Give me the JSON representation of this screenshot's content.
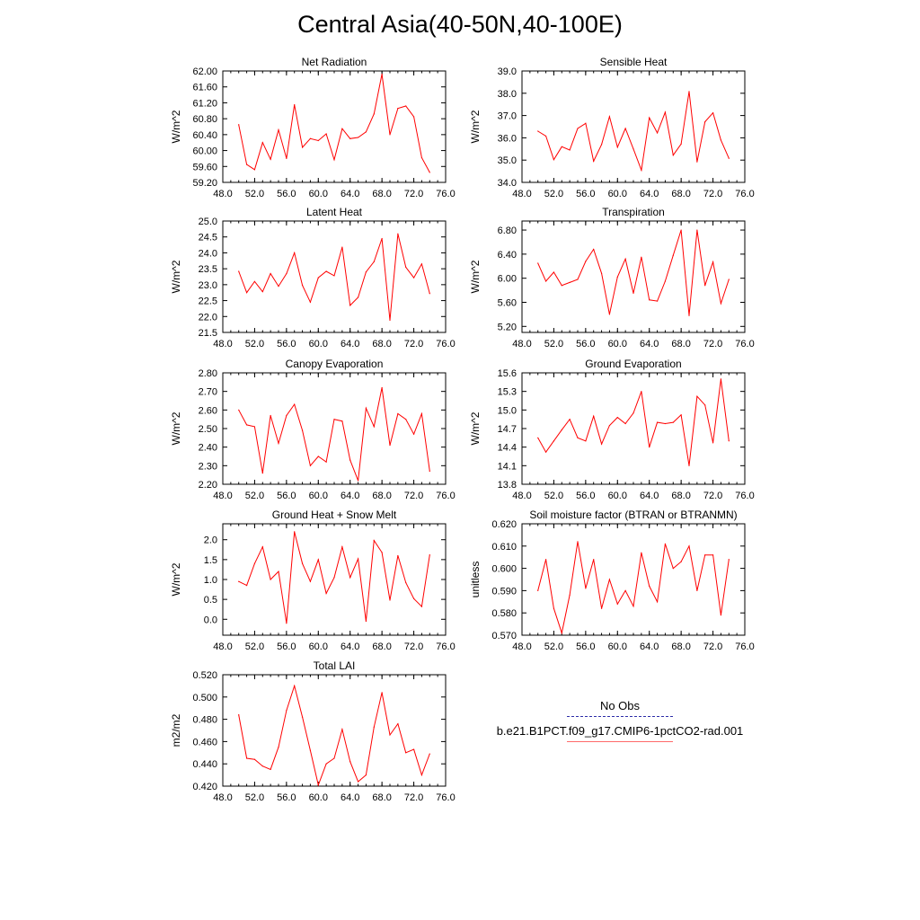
{
  "title": "Central Asia(40-50N,40-100E)",
  "colors": {
    "model": "#ff0000",
    "obs": "#2c2ca8",
    "axis": "#000000"
  },
  "legend": {
    "obs_label": "No Obs",
    "model_label": "b.e21.B1PCT.f09_g17.CMIP6-1pctCO2-rad.001"
  },
  "chart_data": [
    {
      "type": "line",
      "title": "Net Radiation",
      "xlabel": "",
      "ylabel": "W/m^2",
      "xlim": [
        48,
        76
      ],
      "ylim": [
        59.2,
        62.0
      ],
      "xticks": [
        "48.0",
        "52.0",
        "56.0",
        "60.0",
        "64.0",
        "68.0",
        "72.0",
        "76.0"
      ],
      "yticks": [
        "59.20",
        "59.60",
        "60.00",
        "60.40",
        "60.80",
        "61.20",
        "61.60",
        "62.00"
      ],
      "x": [
        50,
        51,
        52,
        53,
        54,
        55,
        56,
        57,
        58,
        59,
        60,
        61,
        62,
        63,
        64,
        65,
        66,
        67,
        68,
        69,
        70,
        71,
        72,
        73,
        74
      ],
      "series": [
        {
          "values": [
            60.65,
            59.65,
            59.52,
            60.2,
            59.78,
            60.52,
            59.8,
            61.15,
            60.08,
            60.3,
            60.25,
            60.42,
            59.77,
            60.55,
            60.3,
            60.33,
            60.47,
            60.92,
            61.92,
            60.4,
            61.06,
            61.12,
            60.85,
            59.82,
            59.45
          ]
        }
      ]
    },
    {
      "type": "line",
      "title": "Sensible Heat",
      "xlabel": "",
      "ylabel": "W/m^2",
      "xlim": [
        48,
        76
      ],
      "ylim": [
        34.0,
        39.0
      ],
      "xticks": [
        "48.0",
        "52.0",
        "56.0",
        "60.0",
        "64.0",
        "68.0",
        "72.0",
        "76.0"
      ],
      "yticks": [
        "34.0",
        "35.0",
        "36.0",
        "37.0",
        "38.0",
        "39.0"
      ],
      "x": [
        50,
        51,
        52,
        53,
        54,
        55,
        56,
        57,
        58,
        59,
        60,
        61,
        62,
        63,
        64,
        65,
        66,
        67,
        68,
        69,
        70,
        71,
        72,
        73,
        74
      ],
      "series": [
        {
          "values": [
            36.3,
            36.08,
            35.02,
            35.6,
            35.45,
            36.42,
            36.65,
            34.95,
            35.7,
            36.95,
            35.58,
            36.42,
            35.5,
            34.55,
            36.9,
            36.22,
            37.15,
            35.22,
            35.72,
            38.08,
            34.92,
            36.72,
            37.12,
            35.9,
            35.08
          ]
        }
      ]
    },
    {
      "type": "line",
      "title": "Latent Heat",
      "xlabel": "",
      "ylabel": "W/m^2",
      "xlim": [
        48,
        76
      ],
      "ylim": [
        21.5,
        25.0
      ],
      "xticks": [
        "48.0",
        "52.0",
        "56.0",
        "60.0",
        "64.0",
        "68.0",
        "72.0",
        "76.0"
      ],
      "yticks": [
        "21.5",
        "22.0",
        "22.5",
        "23.0",
        "23.5",
        "24.0",
        "24.5",
        "25.0"
      ],
      "x": [
        50,
        51,
        52,
        53,
        54,
        55,
        56,
        57,
        58,
        59,
        60,
        61,
        62,
        63,
        64,
        65,
        66,
        67,
        68,
        69,
        70,
        71,
        72,
        73,
        74
      ],
      "series": [
        {
          "values": [
            23.42,
            22.75,
            23.1,
            22.78,
            23.35,
            22.95,
            23.35,
            24.0,
            22.98,
            22.45,
            23.22,
            23.42,
            23.28,
            24.18,
            22.35,
            22.6,
            23.4,
            23.72,
            24.45,
            21.88,
            24.6,
            23.55,
            23.22,
            23.65,
            22.72
          ]
        }
      ]
    },
    {
      "type": "line",
      "title": "Transpiration",
      "xlabel": "",
      "ylabel": "W/m^2",
      "xlim": [
        48,
        76
      ],
      "ylim": [
        5.1,
        6.95
      ],
      "xticks": [
        "48.0",
        "52.0",
        "56.0",
        "60.0",
        "64.0",
        "68.0",
        "72.0",
        "76.0"
      ],
      "yticks": [
        "5.20",
        "5.60",
        "6.00",
        "6.40",
        "6.80"
      ],
      "x": [
        50,
        51,
        52,
        53,
        54,
        55,
        56,
        57,
        58,
        59,
        60,
        61,
        62,
        63,
        64,
        65,
        66,
        67,
        68,
        69,
        70,
        71,
        72,
        73,
        74
      ],
      "series": [
        {
          "values": [
            6.25,
            5.95,
            6.1,
            5.88,
            5.93,
            5.98,
            6.28,
            6.48,
            6.08,
            5.4,
            6.02,
            6.32,
            5.75,
            6.35,
            5.64,
            5.62,
            5.95,
            6.38,
            6.8,
            5.38,
            6.8,
            5.88,
            6.27,
            5.58,
            5.98
          ]
        }
      ]
    },
    {
      "type": "line",
      "title": "Canopy Evaporation",
      "xlabel": "",
      "ylabel": "W/m^2",
      "xlim": [
        48,
        76
      ],
      "ylim": [
        2.2,
        2.8
      ],
      "xticks": [
        "48.0",
        "52.0",
        "56.0",
        "60.0",
        "64.0",
        "68.0",
        "72.0",
        "76.0"
      ],
      "yticks": [
        "2.20",
        "2.30",
        "2.40",
        "2.50",
        "2.60",
        "2.70",
        "2.80"
      ],
      "x": [
        50,
        51,
        52,
        53,
        54,
        55,
        56,
        57,
        58,
        59,
        60,
        61,
        62,
        63,
        64,
        65,
        66,
        67,
        68,
        69,
        70,
        71,
        72,
        73,
        74
      ],
      "series": [
        {
          "values": [
            2.6,
            2.52,
            2.51,
            2.26,
            2.57,
            2.42,
            2.57,
            2.63,
            2.49,
            2.3,
            2.35,
            2.32,
            2.55,
            2.54,
            2.33,
            2.22,
            2.61,
            2.51,
            2.72,
            2.41,
            2.58,
            2.55,
            2.47,
            2.58,
            2.27
          ]
        }
      ]
    },
    {
      "type": "line",
      "title": "Ground Evaporation",
      "xlabel": "",
      "ylabel": "W/m^2",
      "xlim": [
        48,
        76
      ],
      "ylim": [
        13.8,
        15.6
      ],
      "xticks": [
        "48.0",
        "52.0",
        "56.0",
        "60.0",
        "64.0",
        "68.0",
        "72.0",
        "76.0"
      ],
      "yticks": [
        "13.8",
        "14.1",
        "14.4",
        "14.7",
        "15.0",
        "15.3",
        "15.6"
      ],
      "x": [
        50,
        51,
        52,
        53,
        54,
        55,
        56,
        57,
        58,
        59,
        60,
        61,
        62,
        63,
        64,
        65,
        66,
        67,
        68,
        69,
        70,
        71,
        72,
        73,
        74
      ],
      "series": [
        {
          "values": [
            14.55,
            14.32,
            14.5,
            14.68,
            14.85,
            14.55,
            14.5,
            14.9,
            14.45,
            14.75,
            14.88,
            14.78,
            14.95,
            15.3,
            14.4,
            14.8,
            14.78,
            14.8,
            14.92,
            14.1,
            15.22,
            15.08,
            14.47,
            15.5,
            14.5
          ]
        }
      ]
    },
    {
      "type": "line",
      "title": "Ground Heat + Snow Melt",
      "xlabel": "",
      "ylabel": "W/m^2",
      "xlim": [
        48,
        76
      ],
      "ylim": [
        -0.4,
        2.4
      ],
      "xticks": [
        "48.0",
        "52.0",
        "56.0",
        "60.0",
        "64.0",
        "68.0",
        "72.0",
        "76.0"
      ],
      "yticks": [
        "0.0",
        "0.5",
        "1.0",
        "1.5",
        "2.0"
      ],
      "x": [
        50,
        51,
        52,
        53,
        54,
        55,
        56,
        57,
        58,
        59,
        60,
        61,
        62,
        63,
        64,
        65,
        66,
        67,
        68,
        69,
        70,
        71,
        72,
        73,
        74
      ],
      "series": [
        {
          "values": [
            0.95,
            0.85,
            1.4,
            1.82,
            1.0,
            1.2,
            -0.1,
            2.2,
            1.4,
            0.95,
            1.5,
            0.65,
            1.05,
            1.82,
            1.05,
            1.52,
            -0.05,
            1.98,
            1.68,
            0.48,
            1.6,
            0.92,
            0.52,
            0.32,
            1.62
          ]
        }
      ]
    },
    {
      "type": "line",
      "title": "Soil moisture factor (BTRAN or BTRANMN)",
      "xlabel": "",
      "ylabel": "unitless",
      "xlim": [
        48,
        76
      ],
      "ylim": [
        0.57,
        0.62
      ],
      "xticks": [
        "48.0",
        "52.0",
        "56.0",
        "60.0",
        "64.0",
        "68.0",
        "72.0",
        "76.0"
      ],
      "yticks": [
        "0.570",
        "0.580",
        "0.590",
        "0.600",
        "0.610",
        "0.620"
      ],
      "x": [
        50,
        51,
        52,
        53,
        54,
        55,
        56,
        57,
        58,
        59,
        60,
        61,
        62,
        63,
        64,
        65,
        66,
        67,
        68,
        69,
        70,
        71,
        72,
        73,
        74
      ],
      "series": [
        {
          "values": [
            0.59,
            0.604,
            0.582,
            0.571,
            0.588,
            0.612,
            0.591,
            0.604,
            0.582,
            0.595,
            0.584,
            0.59,
            0.583,
            0.607,
            0.592,
            0.585,
            0.611,
            0.6,
            0.603,
            0.61,
            0.59,
            0.606,
            0.606,
            0.579,
            0.604
          ]
        }
      ]
    },
    {
      "type": "line",
      "title": "Total LAI",
      "xlabel": "",
      "ylabel": "m2/m2",
      "xlim": [
        48,
        76
      ],
      "ylim": [
        0.42,
        0.52
      ],
      "xticks": [
        "48.0",
        "52.0",
        "56.0",
        "60.0",
        "64.0",
        "68.0",
        "72.0",
        "76.0"
      ],
      "yticks": [
        "0.420",
        "0.440",
        "0.460",
        "0.480",
        "0.500",
        "0.520"
      ],
      "x": [
        50,
        51,
        52,
        53,
        54,
        55,
        56,
        57,
        58,
        59,
        60,
        61,
        62,
        63,
        64,
        65,
        66,
        67,
        68,
        69,
        70,
        71,
        72,
        73,
        74
      ],
      "series": [
        {
          "values": [
            0.484,
            0.445,
            0.444,
            0.438,
            0.435,
            0.455,
            0.488,
            0.51,
            0.482,
            0.452,
            0.421,
            0.44,
            0.445,
            0.471,
            0.442,
            0.424,
            0.43,
            0.473,
            0.504,
            0.466,
            0.476,
            0.45,
            0.453,
            0.43,
            0.449
          ]
        }
      ]
    }
  ]
}
